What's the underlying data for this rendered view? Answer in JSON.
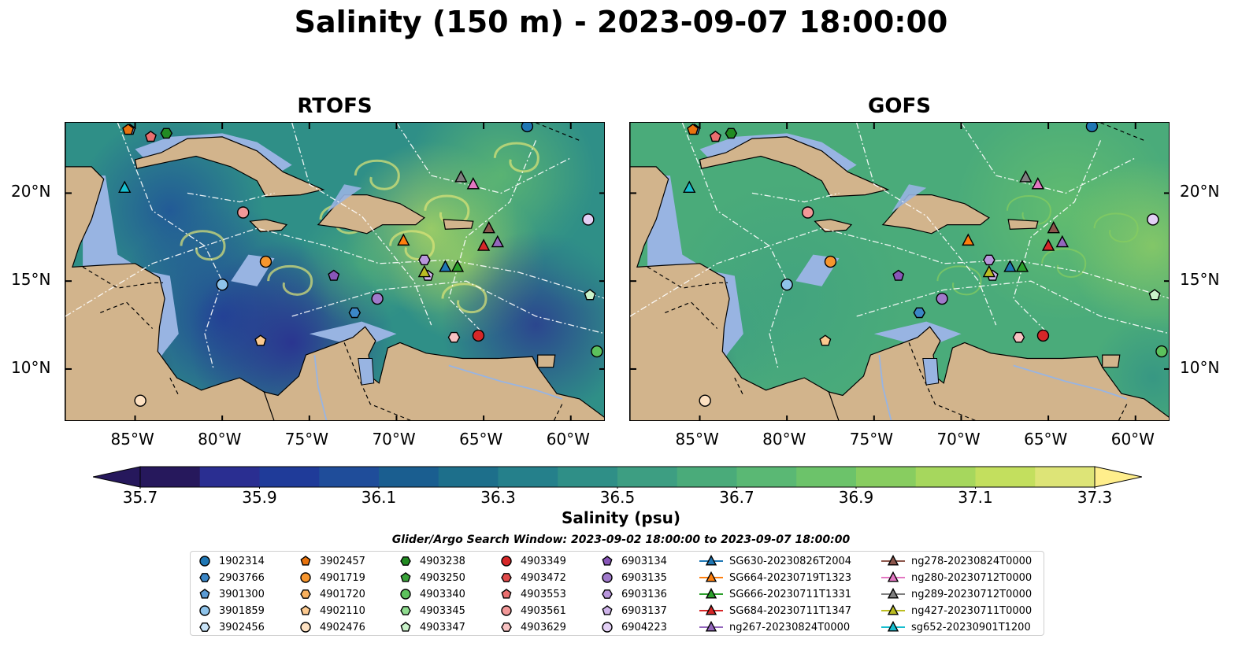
{
  "title": "Salinity (150 m) - 2023-09-07 18:00:00",
  "panels": [
    {
      "title": "RTOFS",
      "variant": "rtofs"
    },
    {
      "title": "GOFS",
      "variant": "gofs"
    }
  ],
  "axes": {
    "lon_ticks": [
      "85°W",
      "80°W",
      "75°W",
      "70°W",
      "65°W",
      "60°W"
    ],
    "lat_ticks": [
      "20°N",
      "15°N",
      "10°N"
    ],
    "lon_range": [
      -89,
      -58
    ],
    "lat_range": [
      7,
      24
    ]
  },
  "colorbar": {
    "label": "Salinity (psu)",
    "ticks": [
      "35.7",
      "35.9",
      "36.1",
      "36.3",
      "36.5",
      "36.7",
      "36.9",
      "37.1",
      "37.3"
    ],
    "range": [
      35.7,
      37.3
    ],
    "colors": [
      "#26185c",
      "#2a2e91",
      "#1f3b99",
      "#1f4d9a",
      "#1a5e90",
      "#1d6f8b",
      "#25808b",
      "#2f8f87",
      "#3d9e82",
      "#4aab7a",
      "#5ab874",
      "#6cc36a",
      "#88cd60",
      "#a6d75d",
      "#c3df5e",
      "#dde477"
    ]
  },
  "legend": {
    "title": "Glider/Argo Search Window: 2023-09-02 18:00:00 to 2023-09-07 18:00:00",
    "columns": [
      [
        {
          "label": "1902314",
          "marker": "circle",
          "color": "#1f77b4"
        },
        {
          "label": "2903766",
          "marker": "hexagon",
          "color": "#3b86c6"
        },
        {
          "label": "3901300",
          "marker": "pentagon",
          "color": "#5b9bd5"
        },
        {
          "label": "3901859",
          "marker": "circle",
          "color": "#8ec3ea"
        },
        {
          "label": "3902456",
          "marker": "hexagon",
          "color": "#c8e3f7"
        }
      ],
      [
        {
          "label": "3902457",
          "marker": "pentagon",
          "color": "#e8730e"
        },
        {
          "label": "4901719",
          "marker": "circle",
          "color": "#f7962e"
        },
        {
          "label": "4901720",
          "marker": "hexagon",
          "color": "#f9b15e"
        },
        {
          "label": "4902110",
          "marker": "pentagon",
          "color": "#fbc98f"
        },
        {
          "label": "4902476",
          "marker": "circle",
          "color": "#fde1c2"
        }
      ],
      [
        {
          "label": "4903238",
          "marker": "hexagon",
          "color": "#228b22"
        },
        {
          "label": "4903250",
          "marker": "pentagon",
          "color": "#3aa33a"
        },
        {
          "label": "4903340",
          "marker": "circle",
          "color": "#5cc15c"
        },
        {
          "label": "4903345",
          "marker": "hexagon",
          "color": "#8fdc8f"
        },
        {
          "label": "4903347",
          "marker": "pentagon",
          "color": "#c9f2c9"
        }
      ],
      [
        {
          "label": "4903349",
          "marker": "circle",
          "color": "#d62728"
        },
        {
          "label": "4903472",
          "marker": "hexagon",
          "color": "#e04a4a"
        },
        {
          "label": "4903553",
          "marker": "pentagon",
          "color": "#ea6f6f"
        },
        {
          "label": "4903561",
          "marker": "circle",
          "color": "#f29898"
        },
        {
          "label": "4903629",
          "marker": "hexagon",
          "color": "#f8c2c2"
        }
      ],
      [
        {
          "label": "6903134",
          "marker": "pentagon",
          "color": "#8856b8"
        },
        {
          "label": "6903135",
          "marker": "circle",
          "color": "#a07acb"
        },
        {
          "label": "6903136",
          "marker": "hexagon",
          "color": "#b896dc"
        },
        {
          "label": "6903137",
          "marker": "pentagon",
          "color": "#cfb4ea"
        },
        {
          "label": "6904223",
          "marker": "circle",
          "color": "#e3d0f5"
        }
      ],
      [
        {
          "label": "SG630-20230826T2004",
          "marker": "triangle",
          "color": "#1f77b4"
        },
        {
          "label": "SG664-20230719T1323",
          "marker": "triangle",
          "color": "#ff7f0e"
        },
        {
          "label": "SG666-20230711T1331",
          "marker": "triangle",
          "color": "#2ca02c"
        },
        {
          "label": "SG684-20230711T1347",
          "marker": "triangle",
          "color": "#d62728"
        },
        {
          "label": "ng267-20230824T0000",
          "marker": "triangle",
          "color": "#9467bd"
        }
      ],
      [
        {
          "label": "ng278-20230824T0000",
          "marker": "triangle",
          "color": "#8c564b"
        },
        {
          "label": "ng280-20230712T0000",
          "marker": "triangle",
          "color": "#e377c2"
        },
        {
          "label": "ng289-20230712T0000",
          "marker": "triangle",
          "color": "#7f7f7f"
        },
        {
          "label": "ng427-20230711T0000",
          "marker": "triangle",
          "color": "#bcbd22"
        },
        {
          "label": "sg652-20230901T1200",
          "marker": "triangle",
          "color": "#17becf"
        }
      ]
    ]
  },
  "chart_data": {
    "type": "heatmap",
    "variable": "Salinity",
    "units": "psu",
    "depth_m": 150,
    "time": "2023-09-07 18:00:00",
    "models": [
      "RTOFS",
      "GOFS"
    ],
    "platforms": [
      {
        "id": "1902314",
        "lon": -62.5,
        "lat": 23.8
      },
      {
        "id": "3901859",
        "lon": -80.0,
        "lat": 14.8
      },
      {
        "id": "3901300",
        "lon": -85.3,
        "lat": 23.6
      },
      {
        "id": "3902457",
        "lon": -85.4,
        "lat": 23.6
      },
      {
        "id": "4901719",
        "lon": -77.5,
        "lat": 16.1
      },
      {
        "id": "4902110",
        "lon": -77.8,
        "lat": 11.6
      },
      {
        "id": "4902476",
        "lon": -84.7,
        "lat": 8.2
      },
      {
        "id": "4903238",
        "lon": -83.2,
        "lat": 23.4
      },
      {
        "id": "4903340",
        "lon": -58.5,
        "lat": 11.0
      },
      {
        "id": "4903347",
        "lon": -58.9,
        "lat": 14.2
      },
      {
        "id": "4903349",
        "lon": -65.3,
        "lat": 11.9
      },
      {
        "id": "4903553",
        "lon": -84.1,
        "lat": 23.2
      },
      {
        "id": "4903561",
        "lon": -78.8,
        "lat": 18.9
      },
      {
        "id": "4903629",
        "lon": -66.7,
        "lat": 11.8
      },
      {
        "id": "6903134",
        "lon": -73.6,
        "lat": 15.3
      },
      {
        "id": "6903135",
        "lon": -71.1,
        "lat": 14.0
      },
      {
        "id": "6903136",
        "lon": -68.4,
        "lat": 16.2
      },
      {
        "id": "6903137",
        "lon": -68.2,
        "lat": 15.3
      },
      {
        "id": "6904223",
        "lon": -59.0,
        "lat": 18.5
      },
      {
        "id": "2903766",
        "lon": -72.4,
        "lat": 13.2
      },
      {
        "id": "SG630-20230826T2004",
        "lon": -67.2,
        "lat": 15.8
      },
      {
        "id": "SG664-20230719T1323",
        "lon": -69.6,
        "lat": 17.3
      },
      {
        "id": "SG666-20230711T1331",
        "lon": -66.5,
        "lat": 15.8
      },
      {
        "id": "SG684-20230711T1347",
        "lon": -65.0,
        "lat": 17.0
      },
      {
        "id": "ng267-20230824T0000",
        "lon": -64.2,
        "lat": 17.2
      },
      {
        "id": "ng278-20230824T0000",
        "lon": -64.7,
        "lat": 18.0
      },
      {
        "id": "ng280-20230712T0000",
        "lon": -65.6,
        "lat": 20.5
      },
      {
        "id": "ng289-20230712T0000",
        "lon": -66.3,
        "lat": 20.9
      },
      {
        "id": "ng427-20230711T0000",
        "lon": -68.4,
        "lat": 15.5
      },
      {
        "id": "sg652-20230901T1200",
        "lon": -85.6,
        "lat": 20.3
      }
    ]
  }
}
